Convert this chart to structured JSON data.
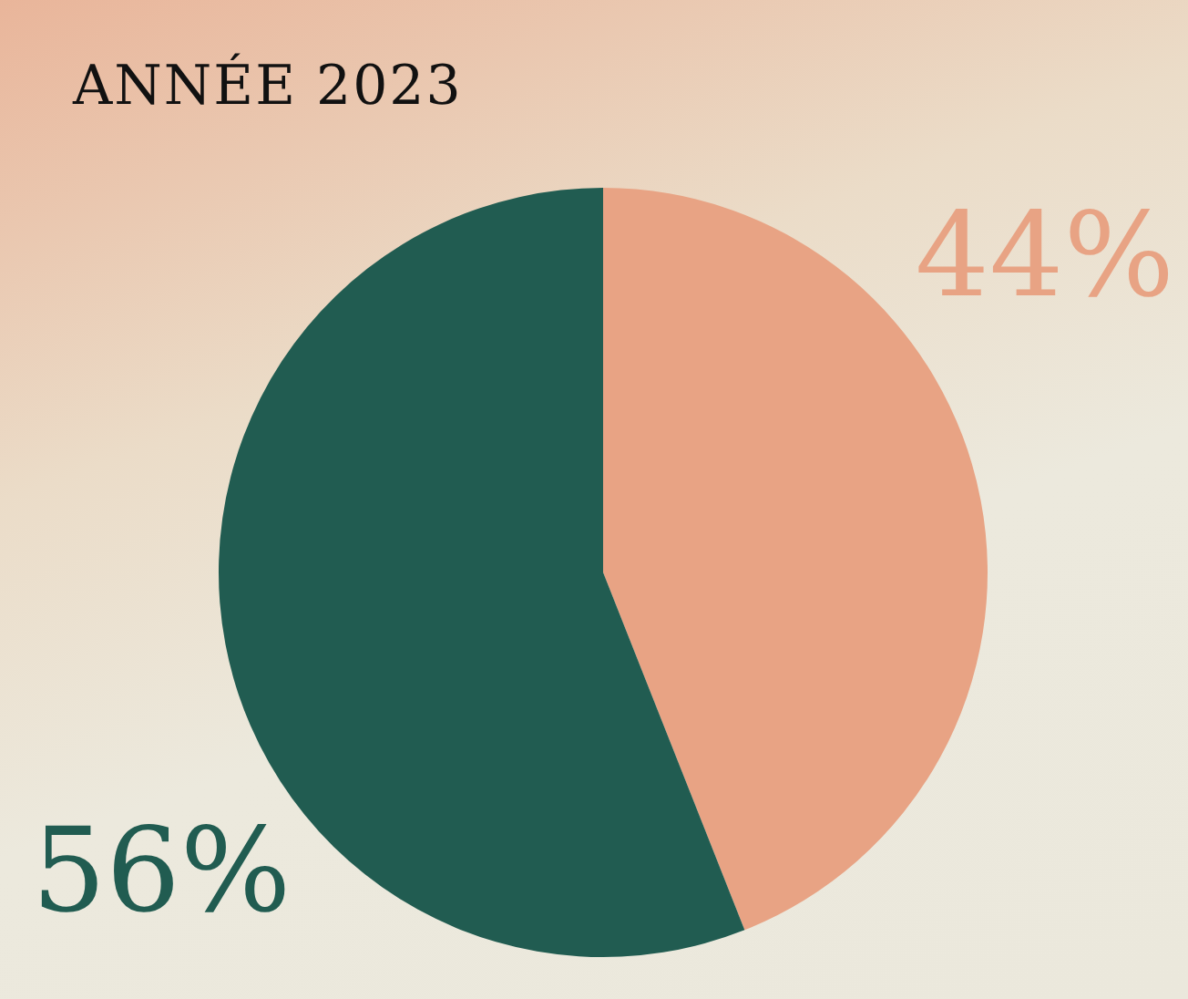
{
  "chart_data": {
    "type": "pie",
    "title": "ANNÉE 2023",
    "categories": [
      null,
      null
    ],
    "values": [
      44,
      56
    ],
    "colors": [
      "#e8a384",
      "#215c51"
    ],
    "value_labels": [
      "44%",
      "56%"
    ],
    "legend": false
  }
}
